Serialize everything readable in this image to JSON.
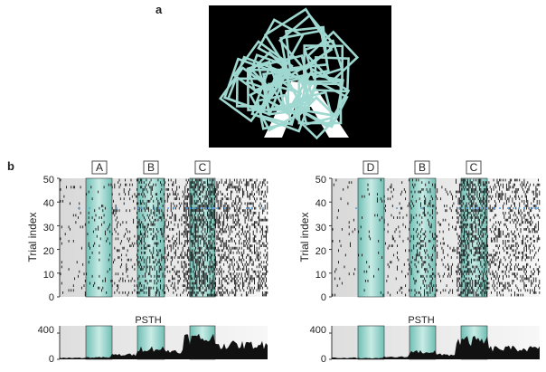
{
  "panel_a": {
    "letter": "a"
  },
  "panel_b": {
    "letter": "b"
  },
  "colors": {
    "stimulus_bg": "#000000",
    "shape_outline": "#9fd8d0",
    "shape_white": "#ffffff",
    "stim_band_center": "#c9ebe6",
    "stim_band_edge": "#6fbfb4",
    "raster": "#111111",
    "highlight_trial": "#5aa0e0",
    "gray_band": "#d9d9d9"
  },
  "rasters": [
    {
      "id": "left",
      "stimulus_labels": [
        "A",
        "B",
        "C"
      ],
      "ylabel": "Trial index",
      "yticks": [
        "0",
        "10",
        "20",
        "30",
        "40",
        "50"
      ],
      "psth_label": "PSTH",
      "psth_yticks": [
        "0",
        "400"
      ]
    },
    {
      "id": "right",
      "stimulus_labels": [
        "D",
        "B",
        "C"
      ],
      "ylabel": "Trial index",
      "yticks": [
        "0",
        "10",
        "20",
        "30",
        "40",
        "50"
      ],
      "psth_label": "PSTH",
      "psth_yticks": [
        "0",
        "400"
      ]
    }
  ]
}
